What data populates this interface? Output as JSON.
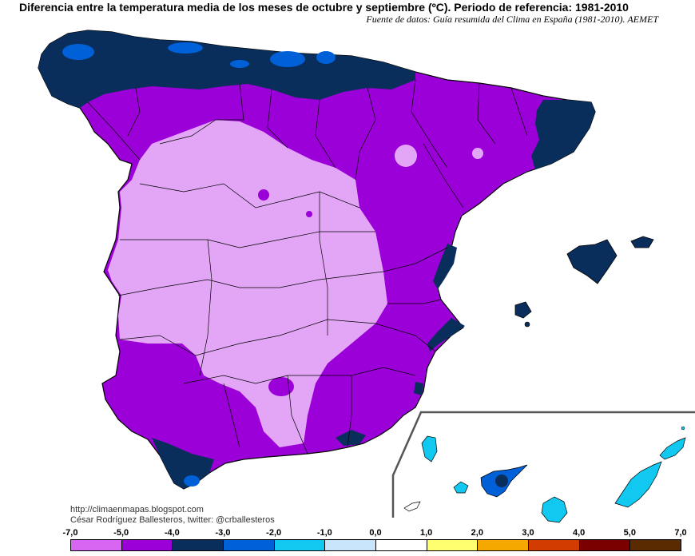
{
  "title": "Diferencia entre la temperatura media de los meses de octubre y septiembre (ºC). Periodo de referencia: 1981-2010",
  "subtitle": "Fuente de datos: Guía resumida del Clima en España (1981-2010). AEMET",
  "credits": {
    "blog": "http://climaenmapas.blogspot.com",
    "author": "César Rodríguez Ballesteros, twitter: @crballesteros"
  },
  "legend": {
    "ticks": [
      "-7,0",
      "-5,0",
      "-4,0",
      "-3,0",
      "-2,0",
      "-1,0",
      "0,0",
      "1,0",
      "2,0",
      "3,0",
      "4,0",
      "5,0",
      "7,0"
    ],
    "bins": [
      {
        "from": -7.0,
        "to": -5.0,
        "color": "#d966f2"
      },
      {
        "from": -5.0,
        "to": -4.0,
        "color": "#9c00d8"
      },
      {
        "from": -4.0,
        "to": -3.0,
        "color": "#0a2e5c"
      },
      {
        "from": -3.0,
        "to": -2.0,
        "color": "#0060d8"
      },
      {
        "from": -2.0,
        "to": -1.0,
        "color": "#10c8f0"
      },
      {
        "from": -1.0,
        "to": 0.0,
        "color": "#c8e4fa"
      },
      {
        "from": 0.0,
        "to": 1.0,
        "color": "#ffffff"
      },
      {
        "from": 1.0,
        "to": 2.0,
        "color": "#ffff70"
      },
      {
        "from": 2.0,
        "to": 3.0,
        "color": "#f5a800"
      },
      {
        "from": 3.0,
        "to": 4.0,
        "color": "#d23c00"
      },
      {
        "from": 4.0,
        "to": 5.0,
        "color": "#7a0000"
      },
      {
        "from": 5.0,
        "to": 7.0,
        "color": "#5a2a00"
      }
    ]
  },
  "colors": {
    "very_light_purple": "#e3a6f6",
    "light_purple": "#d966f2",
    "purple": "#9c00d8",
    "dark_navy": "#0a2e5c",
    "blue": "#0060d8",
    "cyan": "#10c8f0"
  }
}
